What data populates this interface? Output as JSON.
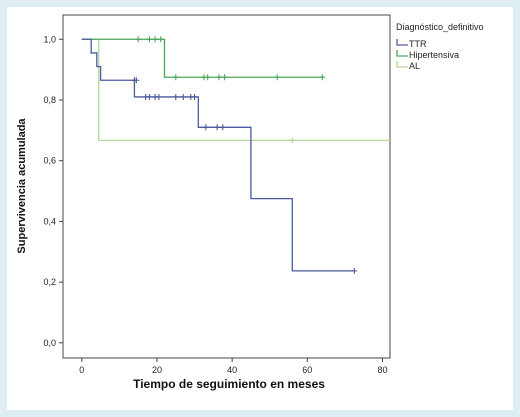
{
  "chart_data": {
    "type": "line",
    "subtype": "kaplan-meier",
    "xlabel": "Tiempo de seguimiento en meses",
    "ylabel": "Supervivencia acumulada",
    "xlim": [
      -5,
      82
    ],
    "ylim": [
      -0.05,
      1.08
    ],
    "x_ticks": [
      "0",
      "20",
      "40",
      "60",
      "80"
    ],
    "x_tick_values": [
      0,
      20,
      40,
      60,
      80
    ],
    "y_ticks": [
      "0,0",
      "0,2",
      "0,4",
      "0,6",
      "0,8",
      "1,0"
    ],
    "y_tick_values": [
      0.0,
      0.2,
      0.4,
      0.6,
      0.8,
      1.0
    ],
    "grid": false,
    "legend": {
      "title": "Diagnóstico_definitivo",
      "position": "top-right outside"
    },
    "series": [
      {
        "name": "TTR",
        "color": "#4a5a9c",
        "steps": [
          [
            0,
            1.0
          ],
          [
            2.5,
            1.0
          ],
          [
            2.5,
            0.955
          ],
          [
            4,
            0.955
          ],
          [
            4,
            0.91
          ],
          [
            5,
            0.91
          ],
          [
            5,
            0.865
          ],
          [
            14,
            0.865
          ],
          [
            14,
            0.81
          ],
          [
            31,
            0.81
          ],
          [
            31,
            0.71
          ],
          [
            45,
            0.71
          ],
          [
            45,
            0.475
          ],
          [
            56,
            0.475
          ],
          [
            56,
            0.237
          ],
          [
            72.5,
            0.237
          ]
        ],
        "censored": [
          [
            14,
            0.865
          ],
          [
            14.5,
            0.865
          ],
          [
            17,
            0.81
          ],
          [
            18,
            0.81
          ],
          [
            19.5,
            0.81
          ],
          [
            20.5,
            0.81
          ],
          [
            25,
            0.81
          ],
          [
            27,
            0.81
          ],
          [
            29,
            0.81
          ],
          [
            30,
            0.81
          ],
          [
            33,
            0.71
          ],
          [
            36,
            0.71
          ],
          [
            37.5,
            0.71
          ],
          [
            72.5,
            0.237
          ]
        ]
      },
      {
        "name": "Hipertensiva",
        "color": "#4fa65a",
        "steps": [
          [
            0,
            1.0
          ],
          [
            22,
            1.0
          ],
          [
            22,
            0.875
          ],
          [
            64,
            0.875
          ]
        ],
        "censored": [
          [
            15,
            1.0
          ],
          [
            18,
            1.0
          ],
          [
            19.5,
            1.0
          ],
          [
            21,
            1.0
          ],
          [
            25,
            0.875
          ],
          [
            32.5,
            0.875
          ],
          [
            33.5,
            0.875
          ],
          [
            36.5,
            0.875
          ],
          [
            38,
            0.875
          ],
          [
            52,
            0.875
          ],
          [
            64,
            0.875
          ]
        ]
      },
      {
        "name": "AL",
        "color": "#b3d89a",
        "steps": [
          [
            0,
            1.0
          ],
          [
            4.5,
            1.0
          ],
          [
            4.5,
            0.667
          ],
          [
            82,
            0.667
          ]
        ],
        "censored": [
          [
            56,
            0.667
          ]
        ]
      }
    ]
  }
}
